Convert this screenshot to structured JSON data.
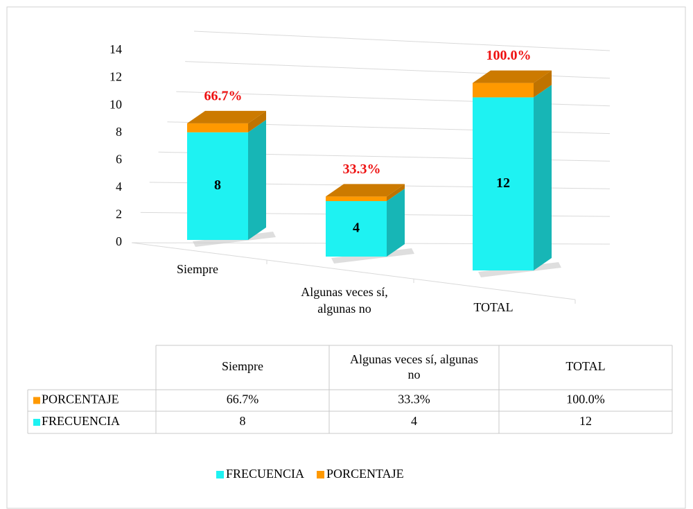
{
  "chart_data": {
    "type": "bar3d_stacked",
    "categories": [
      "Siempre",
      "Algunas veces sí, algunas no",
      "TOTAL"
    ],
    "series": [
      {
        "name": "FRECUENCIA",
        "color": "#1ef2f2",
        "values": [
          8,
          4,
          12
        ]
      },
      {
        "name": "PORCENTAJE",
        "color": "#ff9900",
        "values": [
          0.667,
          0.333,
          1
        ],
        "value_labels": [
          "66.7%",
          "33.3%",
          "100.0%"
        ]
      }
    ],
    "ylim": [
      0,
      14
    ],
    "yticks": [
      0,
      2,
      4,
      6,
      8,
      10,
      12,
      14
    ],
    "grid": true,
    "legend": "bottom",
    "data_table": true
  }
}
